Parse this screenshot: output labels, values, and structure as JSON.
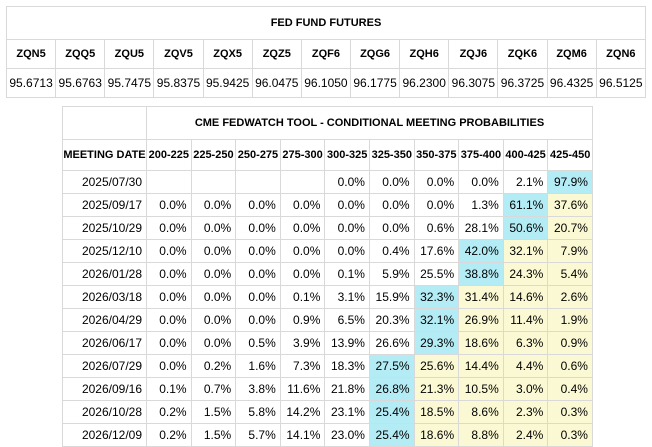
{
  "futures": {
    "title": "FED FUND FUTURES",
    "contracts": [
      "ZQN5",
      "ZQQ5",
      "ZQU5",
      "ZQV5",
      "ZQX5",
      "ZQZ5",
      "ZQF6",
      "ZQG6",
      "ZQH6",
      "ZQJ6",
      "ZQK6",
      "ZQM6",
      "ZQN6"
    ],
    "prices": [
      "95.6713",
      "95.6763",
      "95.7475",
      "95.8375",
      "95.9425",
      "96.0475",
      "96.1050",
      "96.1775",
      "96.2300",
      "96.3075",
      "96.3725",
      "96.4325",
      "96.5125"
    ]
  },
  "fedwatch": {
    "title": "CME FEDWATCH TOOL - CONDITIONAL MEETING PROBABILITIES",
    "date_header": "MEETING DATE",
    "ranges": [
      "200-225",
      "225-250",
      "250-275",
      "275-300",
      "300-325",
      "325-350",
      "350-375",
      "375-400",
      "400-425",
      "425-450"
    ],
    "colors": {
      "highlight": "#b3ecf5",
      "shaded": "#fbf9d3",
      "border": "#d9d9d9"
    },
    "rows": [
      {
        "date": "2025/07/30",
        "probs": [
          "",
          "",
          "",
          "",
          "0.0%",
          "0.0%",
          "0.0%",
          "0.0%",
          "2.1%",
          "97.9%"
        ],
        "max": 9
      },
      {
        "date": "2025/09/17",
        "probs": [
          "0.0%",
          "0.0%",
          "0.0%",
          "0.0%",
          "0.0%",
          "0.0%",
          "0.0%",
          "1.3%",
          "61.1%",
          "37.6%"
        ],
        "max": 8
      },
      {
        "date": "2025/10/29",
        "probs": [
          "0.0%",
          "0.0%",
          "0.0%",
          "0.0%",
          "0.0%",
          "0.0%",
          "0.6%",
          "28.1%",
          "50.6%",
          "20.7%"
        ],
        "max": 8
      },
      {
        "date": "2025/12/10",
        "probs": [
          "0.0%",
          "0.0%",
          "0.0%",
          "0.0%",
          "0.0%",
          "0.4%",
          "17.6%",
          "42.0%",
          "32.1%",
          "7.9%"
        ],
        "max": 7
      },
      {
        "date": "2026/01/28",
        "probs": [
          "0.0%",
          "0.0%",
          "0.0%",
          "0.0%",
          "0.1%",
          "5.9%",
          "25.5%",
          "38.8%",
          "24.3%",
          "5.4%"
        ],
        "max": 7
      },
      {
        "date": "2026/03/18",
        "probs": [
          "0.0%",
          "0.0%",
          "0.0%",
          "0.1%",
          "3.1%",
          "15.9%",
          "32.3%",
          "31.4%",
          "14.6%",
          "2.6%"
        ],
        "max": 6
      },
      {
        "date": "2026/04/29",
        "probs": [
          "0.0%",
          "0.0%",
          "0.0%",
          "0.9%",
          "6.5%",
          "20.3%",
          "32.1%",
          "26.9%",
          "11.4%",
          "1.9%"
        ],
        "max": 6
      },
      {
        "date": "2026/06/17",
        "probs": [
          "0.0%",
          "0.0%",
          "0.5%",
          "3.9%",
          "13.9%",
          "26.6%",
          "29.3%",
          "18.6%",
          "6.3%",
          "0.9%"
        ],
        "max": 6
      },
      {
        "date": "2026/07/29",
        "probs": [
          "0.0%",
          "0.2%",
          "1.6%",
          "7.3%",
          "18.3%",
          "27.5%",
          "25.6%",
          "14.4%",
          "4.4%",
          "0.6%"
        ],
        "max": 5
      },
      {
        "date": "2026/09/16",
        "probs": [
          "0.1%",
          "0.7%",
          "3.8%",
          "11.6%",
          "21.8%",
          "26.8%",
          "21.3%",
          "10.5%",
          "3.0%",
          "0.4%"
        ],
        "max": 5
      },
      {
        "date": "2026/10/28",
        "probs": [
          "0.2%",
          "1.5%",
          "5.8%",
          "14.2%",
          "23.1%",
          "25.4%",
          "18.5%",
          "8.6%",
          "2.3%",
          "0.3%"
        ],
        "max": 5
      },
      {
        "date": "2026/12/09",
        "probs": [
          "0.2%",
          "1.5%",
          "5.7%",
          "14.1%",
          "23.0%",
          "25.4%",
          "18.6%",
          "8.8%",
          "2.4%",
          "0.3%"
        ],
        "max": 5
      }
    ]
  }
}
